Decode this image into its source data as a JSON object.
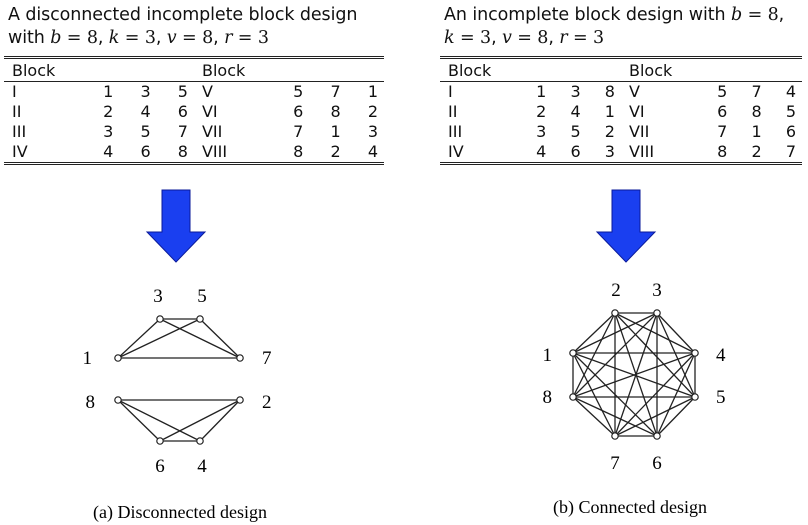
{
  "panels": [
    {
      "title_line1": "A disconnected incomplete block design",
      "title_line2_prefix": "with",
      "params": [
        {
          "sym": "b",
          "val": "8"
        },
        {
          "sym": "k",
          "val": "3"
        },
        {
          "sym": "v",
          "val": "8"
        },
        {
          "sym": "r",
          "val": "3"
        }
      ],
      "header_left": "Block",
      "header_right": "Block",
      "rows": [
        {
          "l_name": "I",
          "l_vals": [
            "1",
            "3",
            "5"
          ],
          "r_name": "V",
          "r_vals": [
            "5",
            "7",
            "1"
          ]
        },
        {
          "l_name": "II",
          "l_vals": [
            "2",
            "4",
            "6"
          ],
          "r_name": "VI",
          "r_vals": [
            "6",
            "8",
            "2"
          ]
        },
        {
          "l_name": "III",
          "l_vals": [
            "3",
            "5",
            "7"
          ],
          "r_name": "VII",
          "r_vals": [
            "7",
            "1",
            "3"
          ]
        },
        {
          "l_name": "IV",
          "l_vals": [
            "4",
            "6",
            "8"
          ],
          "r_name": "VIII",
          "r_vals": [
            "8",
            "2",
            "4"
          ]
        }
      ],
      "caption": "(a) Disconnected design"
    },
    {
      "title_line1_prefix": "An incomplete block design with",
      "params": [
        {
          "sym": "b",
          "val": "8"
        },
        {
          "sym": "k",
          "val": "3"
        },
        {
          "sym": "v",
          "val": "8"
        },
        {
          "sym": "r",
          "val": "3"
        }
      ],
      "header_left": "Block",
      "header_right": "Block",
      "rows": [
        {
          "l_name": "I",
          "l_vals": [
            "1",
            "3",
            "8"
          ],
          "r_name": "V",
          "r_vals": [
            "5",
            "7",
            "4"
          ]
        },
        {
          "l_name": "II",
          "l_vals": [
            "2",
            "4",
            "1"
          ],
          "r_name": "VI",
          "r_vals": [
            "6",
            "8",
            "5"
          ]
        },
        {
          "l_name": "III",
          "l_vals": [
            "3",
            "5",
            "2"
          ],
          "r_name": "VII",
          "r_vals": [
            "7",
            "1",
            "6"
          ]
        },
        {
          "l_name": "IV",
          "l_vals": [
            "4",
            "6",
            "3"
          ],
          "r_name": "VIII",
          "r_vals": [
            "8",
            "2",
            "7"
          ]
        }
      ],
      "caption": "(b) Connected design"
    }
  ],
  "graphs": [
    {
      "vertices": [
        "1",
        "3",
        "5",
        "7",
        "8",
        "6",
        "4",
        "2"
      ],
      "edges": [
        [
          "1",
          "3"
        ],
        [
          "1",
          "5"
        ],
        [
          "1",
          "7"
        ],
        [
          "3",
          "5"
        ],
        [
          "3",
          "7"
        ],
        [
          "5",
          "7"
        ],
        [
          "8",
          "2"
        ],
        [
          "8",
          "6"
        ],
        [
          "8",
          "4"
        ],
        [
          "2",
          "6"
        ],
        [
          "2",
          "4"
        ],
        [
          "6",
          "4"
        ]
      ]
    },
    {
      "vertices": [
        "2",
        "3",
        "4",
        "5",
        "6",
        "7",
        "8",
        "1"
      ],
      "edges": [
        [
          "1",
          "2"
        ],
        [
          "1",
          "3"
        ],
        [
          "1",
          "4"
        ],
        [
          "1",
          "5"
        ],
        [
          "1",
          "6"
        ],
        [
          "1",
          "7"
        ],
        [
          "1",
          "8"
        ],
        [
          "2",
          "3"
        ],
        [
          "2",
          "4"
        ],
        [
          "2",
          "5"
        ],
        [
          "2",
          "6"
        ],
        [
          "2",
          "7"
        ],
        [
          "2",
          "8"
        ],
        [
          "3",
          "4"
        ],
        [
          "3",
          "5"
        ],
        [
          "3",
          "6"
        ],
        [
          "3",
          "7"
        ],
        [
          "3",
          "8"
        ],
        [
          "4",
          "5"
        ],
        [
          "4",
          "6"
        ],
        [
          "4",
          "7"
        ],
        [
          "4",
          "8"
        ],
        [
          "5",
          "6"
        ],
        [
          "5",
          "7"
        ],
        [
          "5",
          "8"
        ],
        [
          "6",
          "7"
        ],
        [
          "6",
          "8"
        ],
        [
          "7",
          "8"
        ]
      ]
    }
  ],
  "colors": {
    "arrow": "#1a3ff0",
    "arrow_edge": "#0a1a9a",
    "ink": "#222222"
  }
}
